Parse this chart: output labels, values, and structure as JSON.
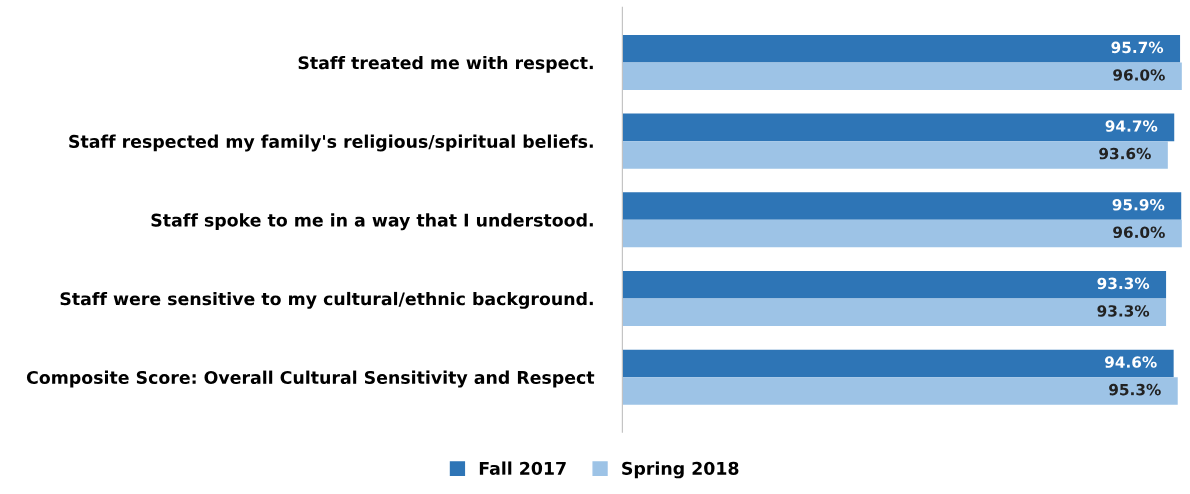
{
  "chart_data": {
    "type": "bar",
    "orientation": "horizontal",
    "categories": [
      "Staff treated me with respect.",
      "Staff respected my family's religious/spiritual beliefs.",
      "Staff spoke to me in a way that I understood.",
      "Staff were sensitive to my cultural/ethnic background.",
      "Composite Score: Overall Cultural Sensitivity and Respect"
    ],
    "series": [
      {
        "name": "Fall 2017",
        "color": "#2e75b6",
        "values": [
          95.7,
          94.7,
          95.9,
          93.3,
          94.6
        ],
        "value_labels": [
          "95.7%",
          "94.7%",
          "95.9%",
          "93.3%",
          "94.6%"
        ]
      },
      {
        "name": "Spring 2018",
        "color": "#9dc3e6",
        "values": [
          96.0,
          93.6,
          96.0,
          93.3,
          95.3
        ],
        "value_labels": [
          "96.0%",
          "93.6%",
          "96.0%",
          "93.3%",
          "95.3%"
        ]
      }
    ],
    "legend": "bottom",
    "grid": false
  }
}
